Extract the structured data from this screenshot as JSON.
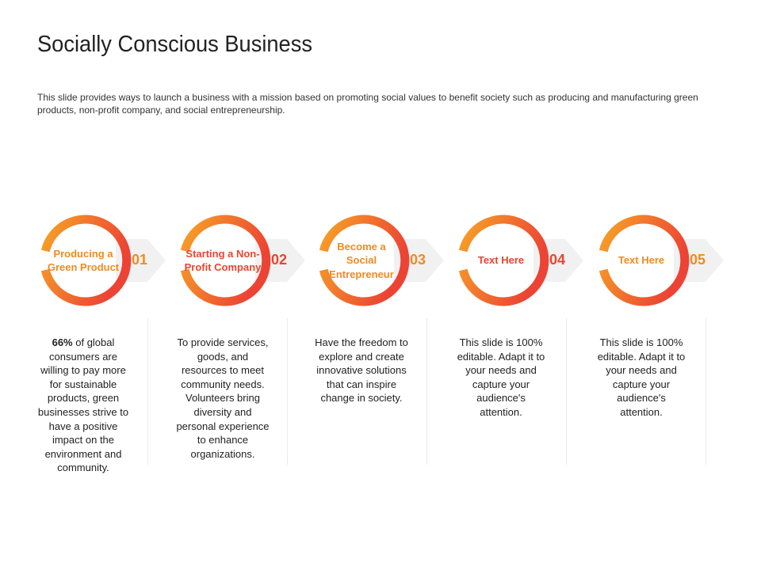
{
  "title": "Socially Conscious Business",
  "subtitle": "This slide provides ways to launch a business with a mission based  on promoting social values to benefit society such as producing and manufacturing green products, non-profit company, and social entrepreneurship.",
  "colors": {
    "ring_start": "#f7a226",
    "ring_end": "#ec4334",
    "label_orange": "#f08a23",
    "label_red": "#e8452f",
    "chevron": "#f1f1f1"
  },
  "steps": [
    {
      "number": "01",
      "label": "Producing a Green Product",
      "desc_bold": "66%",
      "desc": " of global consumers are willing to pay more for sustainable products, green businesses strive to have a positive impact on the environment and community."
    },
    {
      "number": "02",
      "label": "Starting a Non-Profit Company",
      "desc_bold": "",
      "desc": "To provide services, goods, and resources to meet community needs. Volunteers bring diversity and personal experience to enhance organizations."
    },
    {
      "number": "03",
      "label": "Become a Social Entrepreneur",
      "desc_bold": "",
      "desc": "Have the freedom to explore and create innovative solutions that can inspire change in society."
    },
    {
      "number": "04",
      "label": "Text Here",
      "desc_bold": "",
      "desc": "This slide is 100% editable. Adapt it to your needs and capture your audience's attention."
    },
    {
      "number": "05",
      "label": "Text Here",
      "desc_bold": "",
      "desc": "This slide is 100% editable. Adapt it to your needs and capture your audience's attention."
    }
  ]
}
